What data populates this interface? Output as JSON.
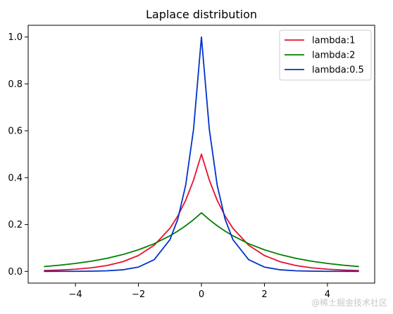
{
  "watermark": "@稀土掘金技术社区",
  "chart_data": {
    "type": "line",
    "title": "Laplace distribution",
    "xlabel": "",
    "ylabel": "",
    "xlim": [
      -5.5,
      5.5
    ],
    "ylim": [
      -0.05,
      1.05
    ],
    "xticks": [
      -4,
      -2,
      0,
      2,
      4
    ],
    "yticks": [
      0.0,
      0.2,
      0.4,
      0.6,
      0.8,
      1.0
    ],
    "xtick_labels": [
      "−4",
      "−2",
      "0",
      "2",
      "4"
    ],
    "ytick_labels": [
      "0.0",
      "0.2",
      "0.4",
      "0.6",
      "0.8",
      "1.0"
    ],
    "legend_position": "top-right",
    "grid": false,
    "series": [
      {
        "name": "lambda:1",
        "color": "#e8112d",
        "x": [
          -5,
          -4.5,
          -4,
          -3.5,
          -3,
          -2.5,
          -2,
          -1.5,
          -1,
          -0.75,
          -0.5,
          -0.25,
          0,
          0.25,
          0.5,
          0.75,
          1,
          1.5,
          2,
          2.5,
          3,
          3.5,
          4,
          4.5,
          5
        ],
        "y": [
          0.0034,
          0.0056,
          0.0092,
          0.0151,
          0.0249,
          0.041,
          0.0677,
          0.1116,
          0.1839,
          0.2362,
          0.3033,
          0.3894,
          0.5,
          0.3894,
          0.3033,
          0.2362,
          0.1839,
          0.1116,
          0.0677,
          0.041,
          0.0249,
          0.0151,
          0.0092,
          0.0056,
          0.0034
        ]
      },
      {
        "name": "lambda:2",
        "color": "#008000",
        "x": [
          -5,
          -4.5,
          -4,
          -3.5,
          -3,
          -2.5,
          -2,
          -1.5,
          -1,
          -0.75,
          -0.5,
          -0.25,
          0,
          0.25,
          0.5,
          0.75,
          1,
          1.5,
          2,
          2.5,
          3,
          3.5,
          4,
          4.5,
          5
        ],
        "y": [
          0.0205,
          0.0263,
          0.0338,
          0.0434,
          0.0558,
          0.0716,
          0.092,
          0.1181,
          0.1516,
          0.1718,
          0.1947,
          0.2206,
          0.25,
          0.2206,
          0.1947,
          0.1718,
          0.1516,
          0.1181,
          0.092,
          0.0716,
          0.0558,
          0.0434,
          0.0338,
          0.0263,
          0.0205
        ]
      },
      {
        "name": "lambda:0.5",
        "color": "#0033cc",
        "x": [
          -5,
          -4.5,
          -4,
          -3.5,
          -3,
          -2.5,
          -2,
          -1.5,
          -1,
          -0.75,
          -0.5,
          -0.25,
          0,
          0.25,
          0.5,
          0.75,
          1,
          1.5,
          2,
          2.5,
          3,
          3.5,
          4,
          4.5,
          5
        ],
        "y": [
          0.0,
          0.0001,
          0.0003,
          0.0009,
          0.0025,
          0.0067,
          0.0183,
          0.0498,
          0.1353,
          0.2231,
          0.3679,
          0.6065,
          1.0,
          0.6065,
          0.3679,
          0.2231,
          0.1353,
          0.0498,
          0.0183,
          0.0067,
          0.0025,
          0.0009,
          0.0003,
          0.0001,
          0.0
        ]
      }
    ]
  }
}
